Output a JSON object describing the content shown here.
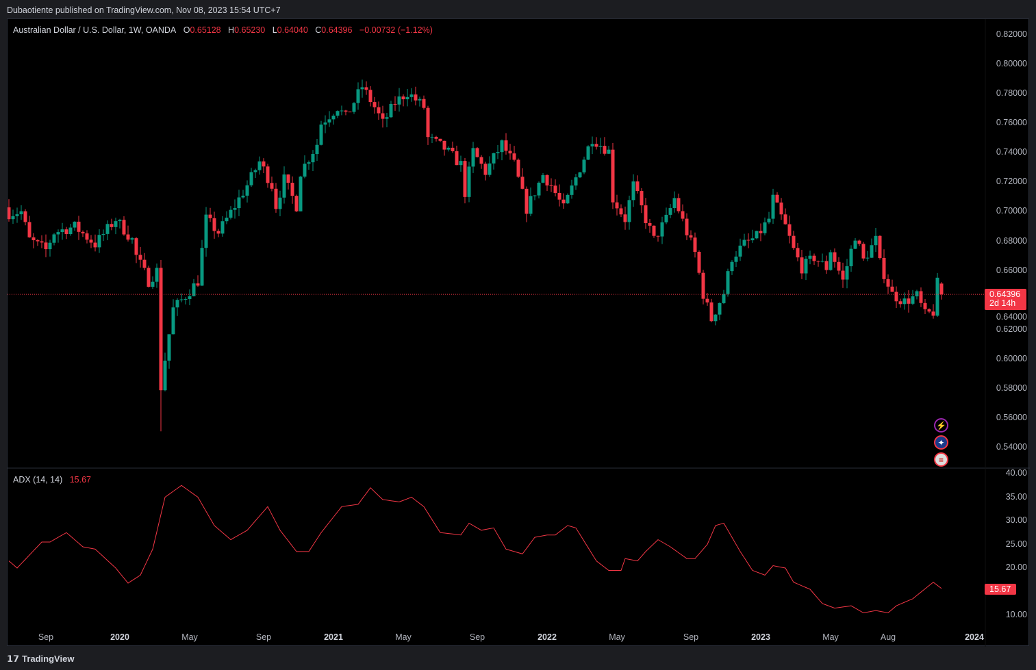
{
  "header": {
    "published": "Dubaotiente published on TradingView.com, Nov 08, 2023 15:54 UTC+7"
  },
  "legend": {
    "symbol": "Australian Dollar / U.S. Dollar, 1W, OANDA",
    "o_label": "O",
    "o": "0.65128",
    "h_label": "H",
    "h": "0.65230",
    "l_label": "L",
    "l": "0.64040",
    "c_label": "C",
    "c": "0.64396",
    "change": "−0.00732 (−1.12%)"
  },
  "last_price": {
    "value": "0.64396",
    "countdown": "2d 14h"
  },
  "adx": {
    "label": "ADX (14, 14)",
    "value": "15.67"
  },
  "footer": {
    "brand": "TradingView",
    "logo": "17"
  },
  "colors": {
    "up": "#089981",
    "down": "#f23645",
    "adx_line": "#f23645"
  },
  "chart_data": [
    {
      "type": "candlestick",
      "title": "Australian Dollar / U.S. Dollar, 1W, OANDA",
      "ylim": [
        0.53,
        0.82
      ],
      "y_ticks": [
        "0.82000",
        "0.80000",
        "0.78000",
        "0.76000",
        "0.74000",
        "0.72000",
        "0.70000",
        "0.68000",
        "0.66000",
        "0.64000",
        "0.62000",
        "0.60000",
        "0.58000",
        "0.56000",
        "0.54000"
      ],
      "x_ticks": [
        {
          "label": "Sep",
          "week": 9
        },
        {
          "label": "2020",
          "week": 27,
          "year": true
        },
        {
          "label": "May",
          "week": 44
        },
        {
          "label": "Sep",
          "week": 62
        },
        {
          "label": "2021",
          "week": 79,
          "year": true
        },
        {
          "label": "May",
          "week": 96
        },
        {
          "label": "Sep",
          "week": 114
        },
        {
          "label": "2022",
          "week": 131,
          "year": true
        },
        {
          "label": "May",
          "week": 148
        },
        {
          "label": "Sep",
          "week": 166
        },
        {
          "label": "2023",
          "week": 183,
          "year": true
        },
        {
          "label": "May",
          "week": 200
        },
        {
          "label": "Aug",
          "week": 214
        },
        {
          "label": "2024",
          "week": 235,
          "year": true
        }
      ],
      "weekly_close_keypoints": [
        [
          0,
          0.699
        ],
        [
          3,
          0.7
        ],
        [
          5,
          0.681
        ],
        [
          9,
          0.674
        ],
        [
          11,
          0.686
        ],
        [
          16,
          0.69
        ],
        [
          21,
          0.678
        ],
        [
          26,
          0.695
        ],
        [
          30,
          0.681
        ],
        [
          31,
          0.67
        ],
        [
          34,
          0.653
        ],
        [
          36,
          0.66
        ],
        [
          37,
          0.581
        ],
        [
          38,
          0.6
        ],
        [
          40,
          0.634
        ],
        [
          43,
          0.643
        ],
        [
          46,
          0.653
        ],
        [
          48,
          0.695
        ],
        [
          51,
          0.686
        ],
        [
          55,
          0.704
        ],
        [
          58,
          0.718
        ],
        [
          61,
          0.734
        ],
        [
          64,
          0.718
        ],
        [
          65,
          0.704
        ],
        [
          67,
          0.722
        ],
        [
          70,
          0.704
        ],
        [
          71,
          0.727
        ],
        [
          75,
          0.746
        ],
        [
          76,
          0.76
        ],
        [
          80,
          0.771
        ],
        [
          82,
          0.764
        ],
        [
          86,
          0.785
        ],
        [
          89,
          0.771
        ],
        [
          91,
          0.76
        ],
        [
          94,
          0.774
        ],
        [
          97,
          0.781
        ],
        [
          101,
          0.771
        ],
        [
          102,
          0.75
        ],
        [
          106,
          0.743
        ],
        [
          110,
          0.732
        ],
        [
          111,
          0.713
        ],
        [
          113,
          0.741
        ],
        [
          116,
          0.727
        ],
        [
          120,
          0.746
        ],
        [
          123,
          0.732
        ],
        [
          126,
          0.702
        ],
        [
          130,
          0.725
        ],
        [
          132,
          0.718
        ],
        [
          135,
          0.702
        ],
        [
          138,
          0.723
        ],
        [
          142,
          0.75
        ],
        [
          146,
          0.741
        ],
        [
          147,
          0.709
        ],
        [
          150,
          0.695
        ],
        [
          152,
          0.718
        ],
        [
          155,
          0.695
        ],
        [
          157,
          0.681
        ],
        [
          160,
          0.695
        ],
        [
          162,
          0.709
        ],
        [
          165,
          0.686
        ],
        [
          167,
          0.672
        ],
        [
          169,
          0.644
        ],
        [
          171,
          0.627
        ],
        [
          174,
          0.645
        ],
        [
          176,
          0.669
        ],
        [
          179,
          0.678
        ],
        [
          182,
          0.683
        ],
        [
          185,
          0.695
        ],
        [
          186,
          0.709
        ],
        [
          189,
          0.69
        ],
        [
          191,
          0.674
        ],
        [
          193,
          0.662
        ],
        [
          196,
          0.669
        ],
        [
          199,
          0.662
        ],
        [
          200,
          0.674
        ],
        [
          203,
          0.653
        ],
        [
          206,
          0.684
        ],
        [
          208,
          0.667
        ],
        [
          211,
          0.681
        ],
        [
          212,
          0.665
        ],
        [
          215,
          0.644
        ],
        [
          218,
          0.639
        ],
        [
          221,
          0.643
        ],
        [
          223,
          0.63
        ],
        [
          225,
          0.632
        ],
        [
          226,
          0.65128
        ],
        [
          227,
          0.64396
        ]
      ],
      "last_candle": {
        "o": 0.65128,
        "h": 0.6523,
        "l": 0.6404,
        "c": 0.64396
      }
    },
    {
      "type": "line",
      "title": "ADX (14, 14)",
      "ylim": [
        8,
        42
      ],
      "y_ticks": [
        "40.00",
        "35.00",
        "30.00",
        "25.00",
        "20.00",
        "10.00"
      ],
      "keypoints": [
        [
          0,
          21.5
        ],
        [
          2,
          20
        ],
        [
          8,
          25.5
        ],
        [
          10,
          25.5
        ],
        [
          14,
          27.5
        ],
        [
          18,
          24.5
        ],
        [
          21,
          24
        ],
        [
          26,
          20
        ],
        [
          29,
          16.8
        ],
        [
          32,
          18.5
        ],
        [
          35,
          24
        ],
        [
          38,
          35
        ],
        [
          42,
          37.5
        ],
        [
          46,
          35
        ],
        [
          50,
          29
        ],
        [
          54,
          26
        ],
        [
          58,
          28
        ],
        [
          63,
          33
        ],
        [
          66,
          28
        ],
        [
          70,
          23.5
        ],
        [
          73,
          23.5
        ],
        [
          76,
          27.5
        ],
        [
          81,
          33
        ],
        [
          85,
          33.5
        ],
        [
          88,
          37
        ],
        [
          91,
          34.5
        ],
        [
          95,
          34
        ],
        [
          98,
          35
        ],
        [
          101,
          33
        ],
        [
          105,
          27.5
        ],
        [
          110,
          27
        ],
        [
          112,
          29.5
        ],
        [
          115,
          28
        ],
        [
          118,
          28.5
        ],
        [
          121,
          24
        ],
        [
          125,
          23
        ],
        [
          128,
          26.5
        ],
        [
          131,
          27
        ],
        [
          133,
          27
        ],
        [
          136,
          29
        ],
        [
          138,
          28.5
        ],
        [
          143,
          21.5
        ],
        [
          146,
          19.5
        ],
        [
          149,
          19.5
        ],
        [
          150,
          22
        ],
        [
          153,
          21.5
        ],
        [
          155,
          23.5
        ],
        [
          158,
          26
        ],
        [
          161,
          24.5
        ],
        [
          165,
          22
        ],
        [
          167,
          22
        ],
        [
          170,
          25
        ],
        [
          172,
          29
        ],
        [
          174,
          29.5
        ],
        [
          178,
          23.5
        ],
        [
          181,
          19.5
        ],
        [
          184,
          18.5
        ],
        [
          186,
          20.5
        ],
        [
          189,
          20
        ],
        [
          191,
          17
        ],
        [
          195,
          15.5
        ],
        [
          198,
          12.5
        ],
        [
          201,
          11.5
        ],
        [
          205,
          12
        ],
        [
          208,
          10.5
        ],
        [
          211,
          11
        ],
        [
          214,
          10.5
        ],
        [
          216,
          12
        ],
        [
          220,
          13.5
        ],
        [
          225,
          17
        ],
        [
          227,
          15.67
        ]
      ]
    }
  ]
}
